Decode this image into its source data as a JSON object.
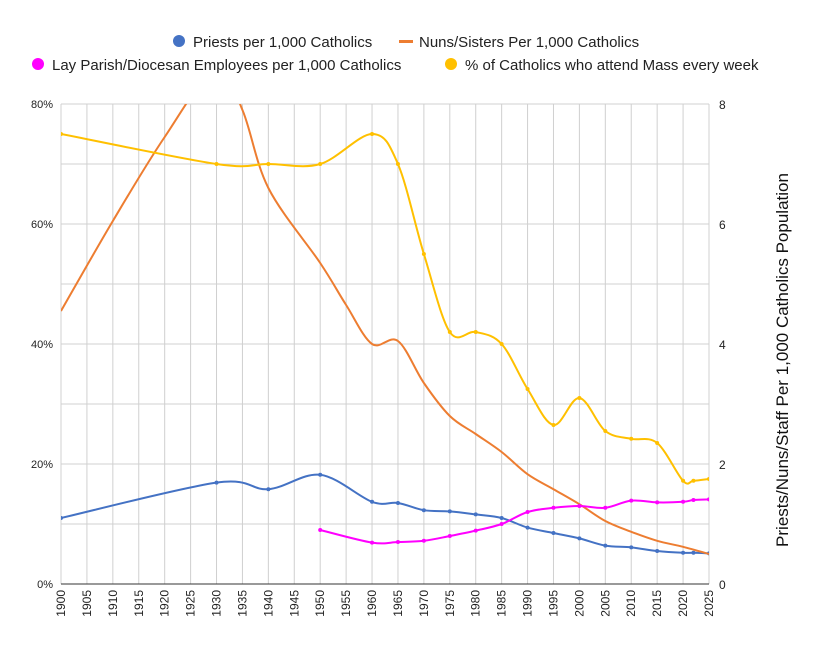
{
  "chart_data": {
    "type": "line",
    "title": "",
    "xlabel": "",
    "ylabel_left": "",
    "ylabel_right": "Priests/Nuns/Staff Per 1,000 Catholics Population",
    "xlim": [
      1900,
      2025
    ],
    "x_ticks": [
      "1900",
      "1905",
      "1910",
      "1915",
      "1920",
      "1925",
      "1930",
      "1935",
      "1940",
      "1945",
      "1950",
      "1955",
      "1960",
      "1965",
      "1970",
      "1975",
      "1980",
      "1985",
      "1990",
      "1995",
      "2000",
      "2005",
      "2010",
      "2015",
      "2020",
      "2025"
    ],
    "ylim_left": [
      0,
      80
    ],
    "y_ticks_left": [
      "0%",
      "20%",
      "40%",
      "60%",
      "80%"
    ],
    "ylim_right": [
      0,
      8
    ],
    "y_ticks_right": [
      "0",
      "2",
      "4",
      "6",
      "8"
    ],
    "grid": true,
    "legend_position": "top",
    "series": [
      {
        "name": "Priests per 1,000 Catholics",
        "axis": "right",
        "color": "#4472c4",
        "legend_marker": "circle",
        "points": [
          [
            1900,
            1.1
          ],
          [
            1930,
            1.69
          ],
          [
            1940,
            1.58
          ],
          [
            1950,
            1.82
          ],
          [
            1960,
            1.37
          ],
          [
            1965,
            1.35
          ],
          [
            1970,
            1.23
          ],
          [
            1975,
            1.21
          ],
          [
            1980,
            1.16
          ],
          [
            1985,
            1.1
          ],
          [
            1990,
            0.94
          ],
          [
            1995,
            0.85
          ],
          [
            2000,
            0.76
          ],
          [
            2005,
            0.64
          ],
          [
            2010,
            0.61
          ],
          [
            2015,
            0.55
          ],
          [
            2020,
            0.52
          ],
          [
            2022,
            0.52
          ],
          [
            2025,
            0.51
          ]
        ]
      },
      {
        "name": "Nuns/Sisters Per 1,000 Catholics",
        "axis": "right",
        "color": "#ed7d31",
        "legend_marker": "dash",
        "points": [
          [
            1900,
            4.55
          ],
          [
            1910,
            6.05
          ],
          [
            1920,
            7.45
          ],
          [
            1930,
            8.6
          ],
          [
            1935,
            7.9
          ],
          [
            1940,
            6.6
          ],
          [
            1950,
            5.35
          ],
          [
            1955,
            4.65
          ],
          [
            1960,
            4.0
          ],
          [
            1965,
            4.05
          ],
          [
            1970,
            3.35
          ],
          [
            1975,
            2.8
          ],
          [
            1980,
            2.5
          ],
          [
            1985,
            2.2
          ],
          [
            1990,
            1.83
          ],
          [
            1995,
            1.58
          ],
          [
            2000,
            1.33
          ],
          [
            2005,
            1.05
          ],
          [
            2010,
            0.87
          ],
          [
            2015,
            0.72
          ],
          [
            2020,
            0.62
          ],
          [
            2025,
            0.5
          ]
        ]
      },
      {
        "name": "Lay Parish/Diocesan Employees per 1,000 Catholics",
        "axis": "right",
        "color": "#ff00ff",
        "legend_marker": "circle",
        "points": [
          [
            1950,
            0.9
          ],
          [
            1960,
            0.69
          ],
          [
            1965,
            0.7
          ],
          [
            1970,
            0.72
          ],
          [
            1975,
            0.8
          ],
          [
            1980,
            0.89
          ],
          [
            1985,
            1.0
          ],
          [
            1990,
            1.2
          ],
          [
            1995,
            1.27
          ],
          [
            2000,
            1.3
          ],
          [
            2005,
            1.27
          ],
          [
            2010,
            1.39
          ],
          [
            2015,
            1.36
          ],
          [
            2020,
            1.37
          ],
          [
            2022,
            1.4
          ],
          [
            2025,
            1.41
          ]
        ]
      },
      {
        "name": "% of Catholics who attend Mass every week",
        "axis": "left",
        "color": "#ffc000",
        "legend_marker": "circle",
        "points": [
          [
            1900,
            75
          ],
          [
            1930,
            70
          ],
          [
            1940,
            70
          ],
          [
            1950,
            70
          ],
          [
            1960,
            75
          ],
          [
            1965,
            70
          ],
          [
            1970,
            55
          ],
          [
            1975,
            42
          ],
          [
            1980,
            42
          ],
          [
            1985,
            40
          ],
          [
            1990,
            32.5
          ],
          [
            1995,
            26.5
          ],
          [
            2000,
            31
          ],
          [
            2005,
            25.5
          ],
          [
            2010,
            24.2
          ],
          [
            2015,
            23.5
          ],
          [
            2020,
            17.2
          ],
          [
            2022,
            17.2
          ],
          [
            2025,
            17.5
          ]
        ]
      }
    ]
  }
}
